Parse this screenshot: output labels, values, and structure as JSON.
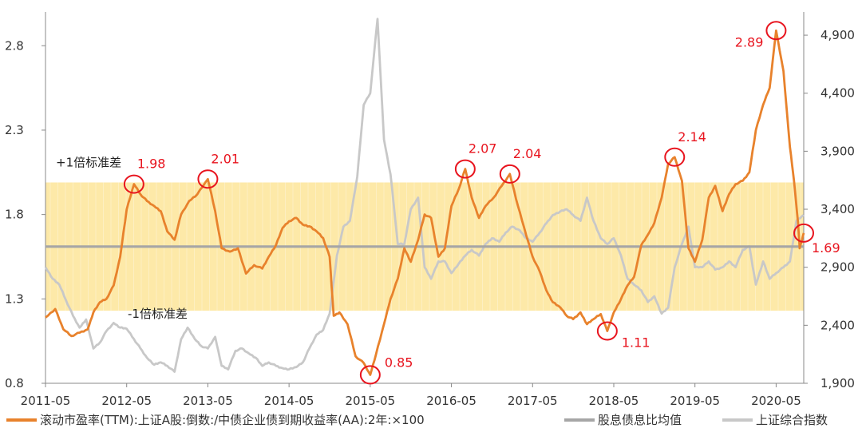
{
  "chart_data": {
    "type": "line",
    "title": "",
    "xlabel": "",
    "ylabel_left": "",
    "ylabel_right": "",
    "x_tick_labels": [
      "2011-05",
      "2012-05",
      "2013-05",
      "2014-05",
      "2015-05",
      "2016-05",
      "2017-05",
      "2018-05",
      "2019-05",
      "2020-05"
    ],
    "x_range": [
      2011.33,
      2020.67
    ],
    "y_left": {
      "range": [
        0.8,
        3.0
      ],
      "ticks": [
        0.8,
        1.3,
        1.8,
        2.3,
        2.8
      ],
      "tick_labels": [
        "0.8",
        "1.3",
        "1.8",
        "2.3",
        "2.8"
      ]
    },
    "y_right": {
      "range": [
        1900,
        5100
      ],
      "ticks": [
        1900,
        2400,
        2900,
        3400,
        3900,
        4400,
        4900
      ],
      "tick_labels": [
        "1,900",
        "2,400",
        "2,900",
        "3,400",
        "3,900",
        "4,400",
        "4,900"
      ]
    },
    "band": {
      "lower": 1.23,
      "upper": 1.99,
      "color": "#fde9a8"
    },
    "band_labels": {
      "upper": "+1倍标准差",
      "lower": "-1倍标准差"
    },
    "colors": {
      "ratio": "#e8822c",
      "mean": "#a6a6a6",
      "index": "#c8c8c8",
      "annotation": "#e8141e"
    },
    "series": [
      {
        "name": "滚动市盈率(TTM):上证A股:倒数:/中债企业债到期收益率(AA):2年:×100",
        "axis": "left",
        "points": [
          [
            2011.33,
            1.19
          ],
          [
            2011.45,
            1.24
          ],
          [
            2011.55,
            1.12
          ],
          [
            2011.65,
            1.08
          ],
          [
            2011.75,
            1.1
          ],
          [
            2011.85,
            1.12
          ],
          [
            2011.92,
            1.22
          ],
          [
            2012.0,
            1.28
          ],
          [
            2012.08,
            1.3
          ],
          [
            2012.17,
            1.38
          ],
          [
            2012.25,
            1.55
          ],
          [
            2012.33,
            1.83
          ],
          [
            2012.42,
            1.98
          ],
          [
            2012.5,
            1.92
          ],
          [
            2012.58,
            1.88
          ],
          [
            2012.67,
            1.85
          ],
          [
            2012.75,
            1.82
          ],
          [
            2012.83,
            1.7
          ],
          [
            2012.92,
            1.65
          ],
          [
            2013.0,
            1.8
          ],
          [
            2013.1,
            1.88
          ],
          [
            2013.2,
            1.92
          ],
          [
            2013.33,
            2.01
          ],
          [
            2013.42,
            1.82
          ],
          [
            2013.5,
            1.6
          ],
          [
            2013.6,
            1.58
          ],
          [
            2013.7,
            1.6
          ],
          [
            2013.8,
            1.45
          ],
          [
            2013.9,
            1.5
          ],
          [
            2014.0,
            1.48
          ],
          [
            2014.08,
            1.55
          ],
          [
            2014.17,
            1.62
          ],
          [
            2014.25,
            1.72
          ],
          [
            2014.33,
            1.76
          ],
          [
            2014.42,
            1.78
          ],
          [
            2014.5,
            1.74
          ],
          [
            2014.58,
            1.73
          ],
          [
            2014.67,
            1.7
          ],
          [
            2014.75,
            1.66
          ],
          [
            2014.83,
            1.55
          ],
          [
            2014.88,
            1.2
          ],
          [
            2014.95,
            1.22
          ],
          [
            2015.05,
            1.15
          ],
          [
            2015.15,
            0.96
          ],
          [
            2015.25,
            0.92
          ],
          [
            2015.33,
            0.85
          ],
          [
            2015.4,
            0.97
          ],
          [
            2015.5,
            1.15
          ],
          [
            2015.58,
            1.3
          ],
          [
            2015.67,
            1.42
          ],
          [
            2015.75,
            1.6
          ],
          [
            2015.83,
            1.52
          ],
          [
            2015.92,
            1.65
          ],
          [
            2016.0,
            1.8
          ],
          [
            2016.08,
            1.78
          ],
          [
            2016.17,
            1.55
          ],
          [
            2016.25,
            1.6
          ],
          [
            2016.33,
            1.85
          ],
          [
            2016.42,
            1.95
          ],
          [
            2016.5,
            2.07
          ],
          [
            2016.58,
            1.9
          ],
          [
            2016.67,
            1.78
          ],
          [
            2016.75,
            1.85
          ],
          [
            2016.85,
            1.9
          ],
          [
            2016.95,
            1.97
          ],
          [
            2017.05,
            2.04
          ],
          [
            2017.15,
            1.85
          ],
          [
            2017.25,
            1.68
          ],
          [
            2017.33,
            1.55
          ],
          [
            2017.42,
            1.46
          ],
          [
            2017.5,
            1.35
          ],
          [
            2017.58,
            1.28
          ],
          [
            2017.67,
            1.25
          ],
          [
            2017.75,
            1.2
          ],
          [
            2017.83,
            1.18
          ],
          [
            2017.92,
            1.22
          ],
          [
            2018.0,
            1.15
          ],
          [
            2018.08,
            1.18
          ],
          [
            2018.17,
            1.21
          ],
          [
            2018.25,
            1.11
          ],
          [
            2018.33,
            1.22
          ],
          [
            2018.42,
            1.3
          ],
          [
            2018.5,
            1.38
          ],
          [
            2018.58,
            1.43
          ],
          [
            2018.67,
            1.62
          ],
          [
            2018.75,
            1.68
          ],
          [
            2018.83,
            1.75
          ],
          [
            2018.92,
            1.9
          ],
          [
            2019.0,
            2.1
          ],
          [
            2019.08,
            2.14
          ],
          [
            2019.17,
            2.0
          ],
          [
            2019.25,
            1.6
          ],
          [
            2019.33,
            1.52
          ],
          [
            2019.42,
            1.65
          ],
          [
            2019.5,
            1.9
          ],
          [
            2019.58,
            1.97
          ],
          [
            2019.67,
            1.82
          ],
          [
            2019.75,
            1.92
          ],
          [
            2019.83,
            1.98
          ],
          [
            2019.92,
            2.0
          ],
          [
            2020.0,
            2.05
          ],
          [
            2020.08,
            2.3
          ],
          [
            2020.17,
            2.45
          ],
          [
            2020.25,
            2.55
          ],
          [
            2020.33,
            2.89
          ],
          [
            2020.42,
            2.65
          ],
          [
            2020.5,
            2.2
          ],
          [
            2020.55,
            2.0
          ],
          [
            2020.6,
            1.75
          ],
          [
            2020.62,
            1.6
          ],
          [
            2020.67,
            1.69
          ]
        ]
      },
      {
        "name": "股息债息比均值",
        "axis": "left",
        "points": [
          [
            2011.33,
            1.61
          ],
          [
            2020.67,
            1.61
          ]
        ]
      },
      {
        "name": "上证综合指数",
        "axis": "right",
        "points": [
          [
            2011.33,
            2900
          ],
          [
            2011.42,
            2800
          ],
          [
            2011.5,
            2750
          ],
          [
            2011.58,
            2620
          ],
          [
            2011.67,
            2480
          ],
          [
            2011.75,
            2380
          ],
          [
            2011.83,
            2450
          ],
          [
            2011.92,
            2200
          ],
          [
            2012.0,
            2250
          ],
          [
            2012.08,
            2350
          ],
          [
            2012.17,
            2420
          ],
          [
            2012.25,
            2380
          ],
          [
            2012.33,
            2370
          ],
          [
            2012.42,
            2280
          ],
          [
            2012.5,
            2200
          ],
          [
            2012.58,
            2120
          ],
          [
            2012.67,
            2060
          ],
          [
            2012.75,
            2080
          ],
          [
            2012.83,
            2050
          ],
          [
            2012.92,
            2000
          ],
          [
            2013.0,
            2280
          ],
          [
            2013.08,
            2380
          ],
          [
            2013.17,
            2280
          ],
          [
            2013.25,
            2220
          ],
          [
            2013.33,
            2200
          ],
          [
            2013.42,
            2300
          ],
          [
            2013.5,
            2050
          ],
          [
            2013.58,
            2020
          ],
          [
            2013.67,
            2180
          ],
          [
            2013.75,
            2200
          ],
          [
            2013.83,
            2160
          ],
          [
            2013.92,
            2120
          ],
          [
            2014.0,
            2050
          ],
          [
            2014.08,
            2080
          ],
          [
            2014.17,
            2050
          ],
          [
            2014.25,
            2030
          ],
          [
            2014.33,
            2020
          ],
          [
            2014.42,
            2040
          ],
          [
            2014.5,
            2080
          ],
          [
            2014.58,
            2200
          ],
          [
            2014.67,
            2320
          ],
          [
            2014.75,
            2360
          ],
          [
            2014.83,
            2500
          ],
          [
            2014.92,
            3000
          ],
          [
            2015.0,
            3250
          ],
          [
            2015.08,
            3300
          ],
          [
            2015.17,
            3680
          ],
          [
            2015.25,
            4300
          ],
          [
            2015.33,
            4400
          ],
          [
            2015.42,
            5040
          ],
          [
            2015.5,
            4000
          ],
          [
            2015.58,
            3700
          ],
          [
            2015.67,
            3100
          ],
          [
            2015.75,
            3100
          ],
          [
            2015.83,
            3400
          ],
          [
            2015.92,
            3500
          ],
          [
            2016.0,
            2900
          ],
          [
            2016.08,
            2800
          ],
          [
            2016.17,
            2950
          ],
          [
            2016.25,
            2950
          ],
          [
            2016.33,
            2850
          ],
          [
            2016.42,
            2930
          ],
          [
            2016.5,
            3000
          ],
          [
            2016.58,
            3050
          ],
          [
            2016.67,
            3000
          ],
          [
            2016.75,
            3100
          ],
          [
            2016.83,
            3150
          ],
          [
            2016.92,
            3120
          ],
          [
            2017.0,
            3200
          ],
          [
            2017.08,
            3250
          ],
          [
            2017.17,
            3220
          ],
          [
            2017.25,
            3150
          ],
          [
            2017.33,
            3120
          ],
          [
            2017.42,
            3200
          ],
          [
            2017.5,
            3280
          ],
          [
            2017.58,
            3350
          ],
          [
            2017.67,
            3380
          ],
          [
            2017.75,
            3400
          ],
          [
            2017.83,
            3350
          ],
          [
            2017.92,
            3300
          ],
          [
            2018.0,
            3500
          ],
          [
            2018.08,
            3300
          ],
          [
            2018.17,
            3150
          ],
          [
            2018.25,
            3100
          ],
          [
            2018.33,
            3150
          ],
          [
            2018.42,
            3000
          ],
          [
            2018.5,
            2800
          ],
          [
            2018.58,
            2750
          ],
          [
            2018.67,
            2700
          ],
          [
            2018.75,
            2600
          ],
          [
            2018.83,
            2650
          ],
          [
            2018.92,
            2500
          ],
          [
            2019.0,
            2550
          ],
          [
            2019.08,
            2900
          ],
          [
            2019.17,
            3100
          ],
          [
            2019.25,
            3250
          ],
          [
            2019.33,
            2900
          ],
          [
            2019.42,
            2900
          ],
          [
            2019.5,
            2950
          ],
          [
            2019.58,
            2880
          ],
          [
            2019.67,
            2900
          ],
          [
            2019.75,
            2950
          ],
          [
            2019.83,
            2900
          ],
          [
            2019.92,
            3050
          ],
          [
            2020.0,
            3080
          ],
          [
            2020.08,
            2750
          ],
          [
            2020.17,
            2950
          ],
          [
            2020.25,
            2800
          ],
          [
            2020.33,
            2850
          ],
          [
            2020.42,
            2900
          ],
          [
            2020.5,
            2950
          ],
          [
            2020.58,
            3300
          ],
          [
            2020.67,
            3350
          ]
        ]
      }
    ],
    "annotations": [
      {
        "label": "1.98",
        "x": 2012.42,
        "y": 1.98,
        "label_side": "right"
      },
      {
        "label": "2.01",
        "x": 2013.33,
        "y": 2.01,
        "label_side": "right"
      },
      {
        "label": "0.85",
        "x": 2015.33,
        "y": 0.85,
        "label_side": "right"
      },
      {
        "label": "2.07",
        "x": 2016.5,
        "y": 2.07,
        "label_side": "right"
      },
      {
        "label": "2.04",
        "x": 2017.05,
        "y": 2.04,
        "label_side": "right"
      },
      {
        "label": "1.11",
        "x": 2018.25,
        "y": 1.11,
        "label_side": "right"
      },
      {
        "label": "2.14",
        "x": 2019.08,
        "y": 2.14,
        "label_side": "right"
      },
      {
        "label": "2.89",
        "x": 2020.33,
        "y": 2.89,
        "label_side": "left"
      },
      {
        "label": "1.69",
        "x": 2020.67,
        "y": 1.69,
        "label_side": "right"
      }
    ],
    "legend_position": "bottom"
  }
}
